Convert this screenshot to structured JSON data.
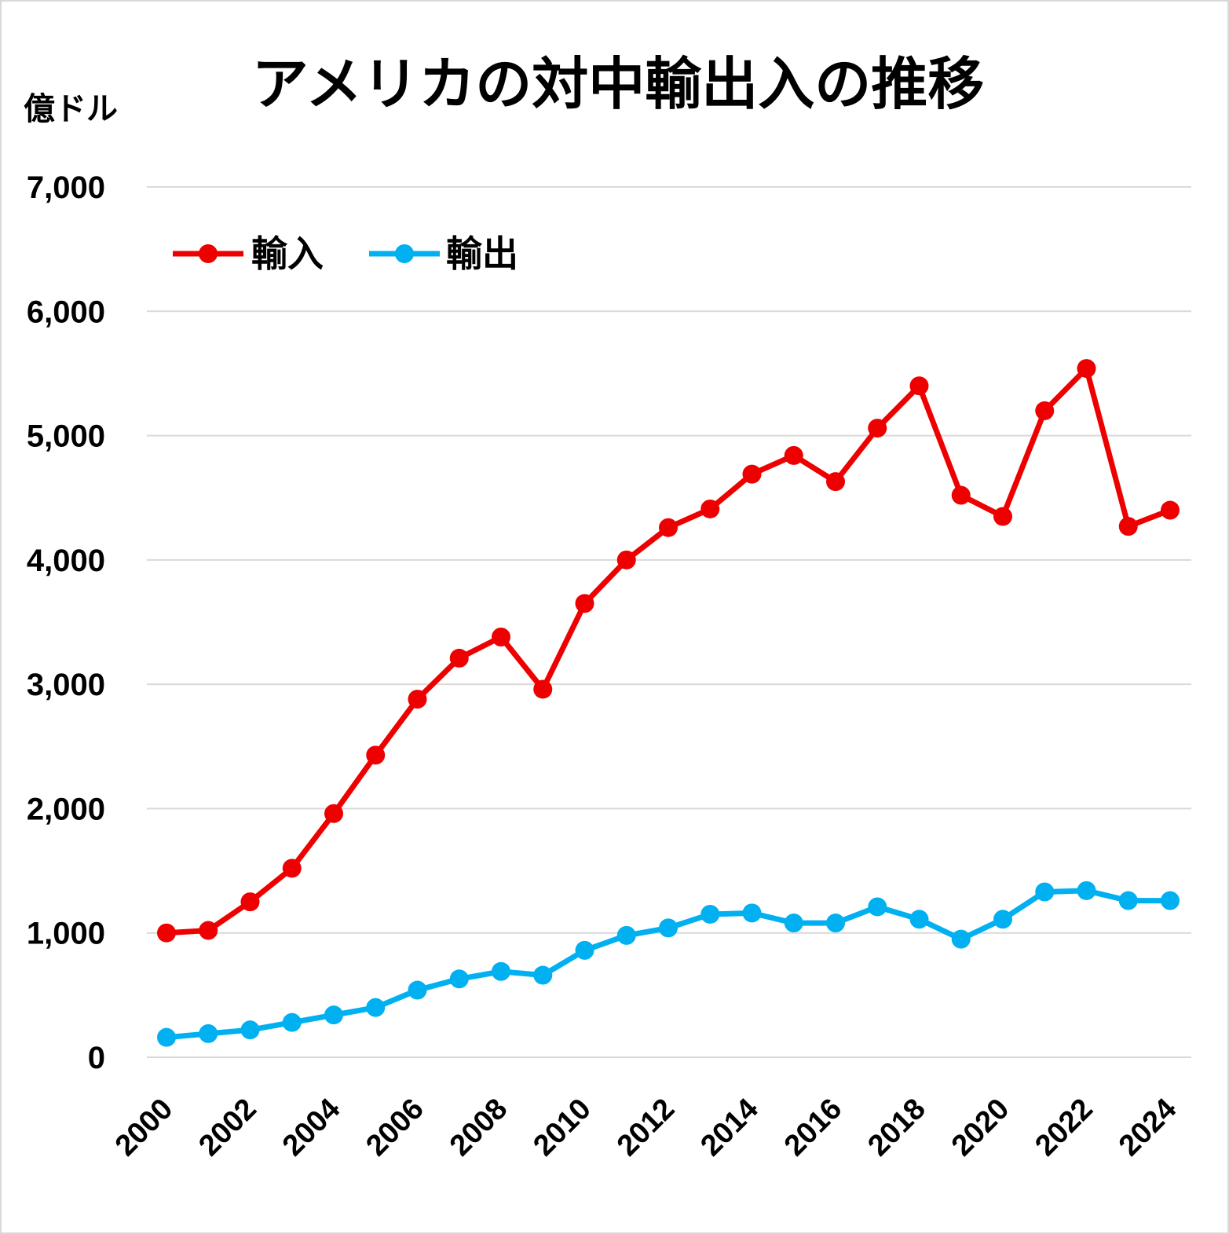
{
  "chart_data": {
    "type": "line",
    "title": "アメリカの対中輸出入の推移",
    "ylabel": "億ドル",
    "xlabel": "",
    "ylim": [
      0,
      7000
    ],
    "y_ticks": [
      "0",
      "1,000",
      "2,000",
      "3,000",
      "4,000",
      "5,000",
      "6,000",
      "7,000"
    ],
    "x": [
      2000,
      2001,
      2002,
      2003,
      2004,
      2005,
      2006,
      2007,
      2008,
      2009,
      2010,
      2011,
      2012,
      2013,
      2014,
      2015,
      2016,
      2017,
      2018,
      2019,
      2020,
      2021,
      2022,
      2023,
      2024
    ],
    "x_tick_labels": [
      "2000",
      "2002",
      "2004",
      "2006",
      "2008",
      "2010",
      "2012",
      "2014",
      "2016",
      "2018",
      "2020",
      "2022",
      "2024"
    ],
    "grid": true,
    "legend_position": "top-left",
    "series": [
      {
        "name": "輸入",
        "color": "#ee0000",
        "values": [
          1000,
          1020,
          1250,
          1520,
          1960,
          2430,
          2880,
          3210,
          3380,
          2960,
          3650,
          4000,
          4260,
          4410,
          4690,
          4840,
          4630,
          5060,
          5400,
          4520,
          4350,
          5200,
          5540,
          4270,
          4400
        ]
      },
      {
        "name": "輸出",
        "color": "#00b0f0",
        "values": [
          160,
          190,
          220,
          280,
          340,
          400,
          540,
          630,
          690,
          660,
          860,
          980,
          1040,
          1150,
          1160,
          1080,
          1080,
          1210,
          1110,
          950,
          1110,
          1330,
          1340,
          1260,
          1260
        ]
      }
    ]
  }
}
